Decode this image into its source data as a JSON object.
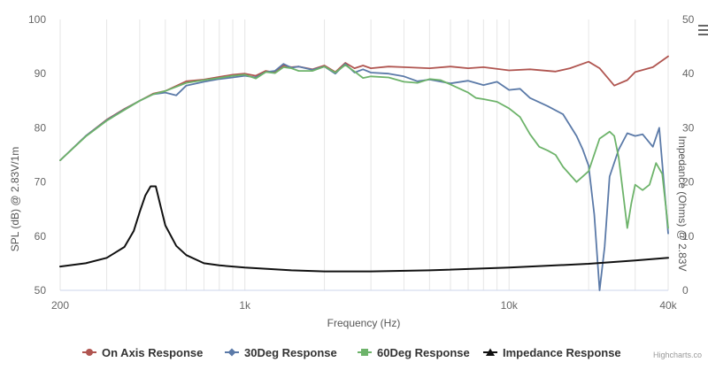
{
  "chart_data": {
    "type": "line",
    "xlabel": "Frequency (Hz)",
    "ylabel": "SPL (dB) @ 2.83V/1m",
    "y2label": "Impedance (Ohms) @ 2.83V",
    "x_scale": "log",
    "xlim": [
      200,
      40000
    ],
    "ylim": [
      50,
      100
    ],
    "y2lim": [
      0,
      50
    ],
    "x_ticks": [
      {
        "value": 200,
        "label": "200"
      },
      {
        "value": 1000,
        "label": "1k"
      },
      {
        "value": 10000,
        "label": "10k"
      },
      {
        "value": 40000,
        "label": "40k"
      }
    ],
    "y_ticks": [
      50,
      60,
      70,
      80,
      90,
      100
    ],
    "y2_ticks": [
      0,
      10,
      20,
      30,
      40,
      50
    ],
    "grid": "vertical log gridlines",
    "legend_position": "bottom",
    "credit": "Highcharts.co",
    "series": [
      {
        "name": "On Axis Response",
        "axis": "left",
        "color": "#b05550",
        "marker": "circle",
        "x": [
          200,
          250,
          300,
          350,
          400,
          450,
          500,
          600,
          700,
          800,
          900,
          1000,
          1100,
          1200,
          1300,
          1400,
          1500,
          1600,
          1800,
          2000,
          2200,
          2400,
          2600,
          2800,
          3000,
          3500,
          4000,
          5000,
          6000,
          7000,
          8000,
          10000,
          12000,
          15000,
          17000,
          20000,
          22000,
          25000,
          28000,
          30000,
          35000,
          40000
        ],
        "values": [
          74,
          78.5,
          81.5,
          83.5,
          85,
          86.3,
          86.8,
          88.6,
          88.9,
          89.4,
          89.8,
          90,
          89.6,
          90.5,
          90.2,
          91.5,
          91.2,
          91.3,
          90.8,
          91.5,
          90.3,
          92,
          91,
          91.5,
          91,
          91.3,
          91.2,
          91,
          91.3,
          91,
          91.2,
          90.6,
          90.8,
          90.4,
          91,
          92.2,
          91,
          87.8,
          88.8,
          90.3,
          91.2,
          93.2
        ]
      },
      {
        "name": "30Deg Response",
        "axis": "left",
        "color": "#5b7aa8",
        "marker": "diamond",
        "x": [
          200,
          250,
          300,
          350,
          400,
          450,
          500,
          550,
          600,
          700,
          800,
          900,
          1000,
          1100,
          1200,
          1300,
          1400,
          1500,
          1600,
          1800,
          2000,
          2200,
          2400,
          2600,
          2800,
          3000,
          3500,
          4000,
          4500,
          5000,
          6000,
          7000,
          8000,
          9000,
          10000,
          11000,
          12000,
          14000,
          16000,
          18000,
          19000,
          20000,
          21000,
          22000,
          23000,
          24000,
          26000,
          28000,
          30000,
          32000,
          35000,
          37000,
          40000
        ],
        "values": [
          74,
          78.5,
          81.4,
          83.4,
          85,
          86.2,
          86.5,
          86,
          87.8,
          88.5,
          89,
          89.3,
          89.6,
          89.3,
          90.3,
          90.5,
          91.8,
          91.1,
          91.3,
          90.7,
          91.3,
          90,
          91.8,
          90.2,
          90.8,
          90.2,
          90,
          89.5,
          88.6,
          88.9,
          88.2,
          88.7,
          87.9,
          88.5,
          87,
          87.2,
          85.5,
          84,
          82.5,
          78.5,
          76,
          73,
          64,
          50,
          58,
          71,
          76,
          79,
          78.5,
          78.8,
          76.5,
          80,
          60.5
        ]
      },
      {
        "name": "60Deg Response",
        "axis": "left",
        "color": "#6db36a",
        "marker": "square",
        "x": [
          200,
          250,
          300,
          350,
          400,
          450,
          500,
          600,
          700,
          800,
          900,
          1000,
          1100,
          1200,
          1300,
          1400,
          1500,
          1600,
          1800,
          2000,
          2200,
          2400,
          2600,
          2800,
          3000,
          3500,
          4000,
          4500,
          5000,
          5500,
          6000,
          7000,
          7500,
          8000,
          9000,
          10000,
          11000,
          12000,
          13000,
          14000,
          15000,
          16000,
          18000,
          20000,
          22000,
          24000,
          25000,
          26000,
          27000,
          28000,
          29000,
          30000,
          32000,
          34000,
          36000,
          38000,
          40000
        ],
        "values": [
          74,
          78.4,
          81.3,
          83.3,
          85,
          86.2,
          86.8,
          88.3,
          88.8,
          89.2,
          89.6,
          89.8,
          89.1,
          90.3,
          90.1,
          91.2,
          91,
          90.5,
          90.5,
          91.3,
          90.2,
          91.6,
          90.4,
          89.2,
          89.5,
          89.3,
          88.5,
          88.3,
          89,
          88.8,
          88,
          86.5,
          85.5,
          85.3,
          84.8,
          83.6,
          82,
          78.8,
          76.5,
          75.8,
          75,
          72.8,
          70,
          72,
          78,
          79.3,
          78.5,
          74.5,
          68,
          61.5,
          66,
          69.5,
          68.5,
          69.5,
          73.5,
          71.5,
          61.5
        ]
      },
      {
        "name": "Impedance Response",
        "axis": "right",
        "color": "#111111",
        "marker": "triangle",
        "x": [
          200,
          250,
          300,
          350,
          380,
          400,
          420,
          440,
          460,
          480,
          500,
          550,
          600,
          700,
          800,
          1000,
          1500,
          2000,
          3000,
          5000,
          10000,
          20000,
          30000,
          40000
        ],
        "values": [
          4.4,
          5,
          6,
          8,
          11,
          14.5,
          17.5,
          19.2,
          19.2,
          15.5,
          12,
          8.2,
          6.5,
          5,
          4.6,
          4.2,
          3.7,
          3.5,
          3.5,
          3.7,
          4.2,
          4.9,
          5.5,
          6
        ]
      }
    ]
  }
}
